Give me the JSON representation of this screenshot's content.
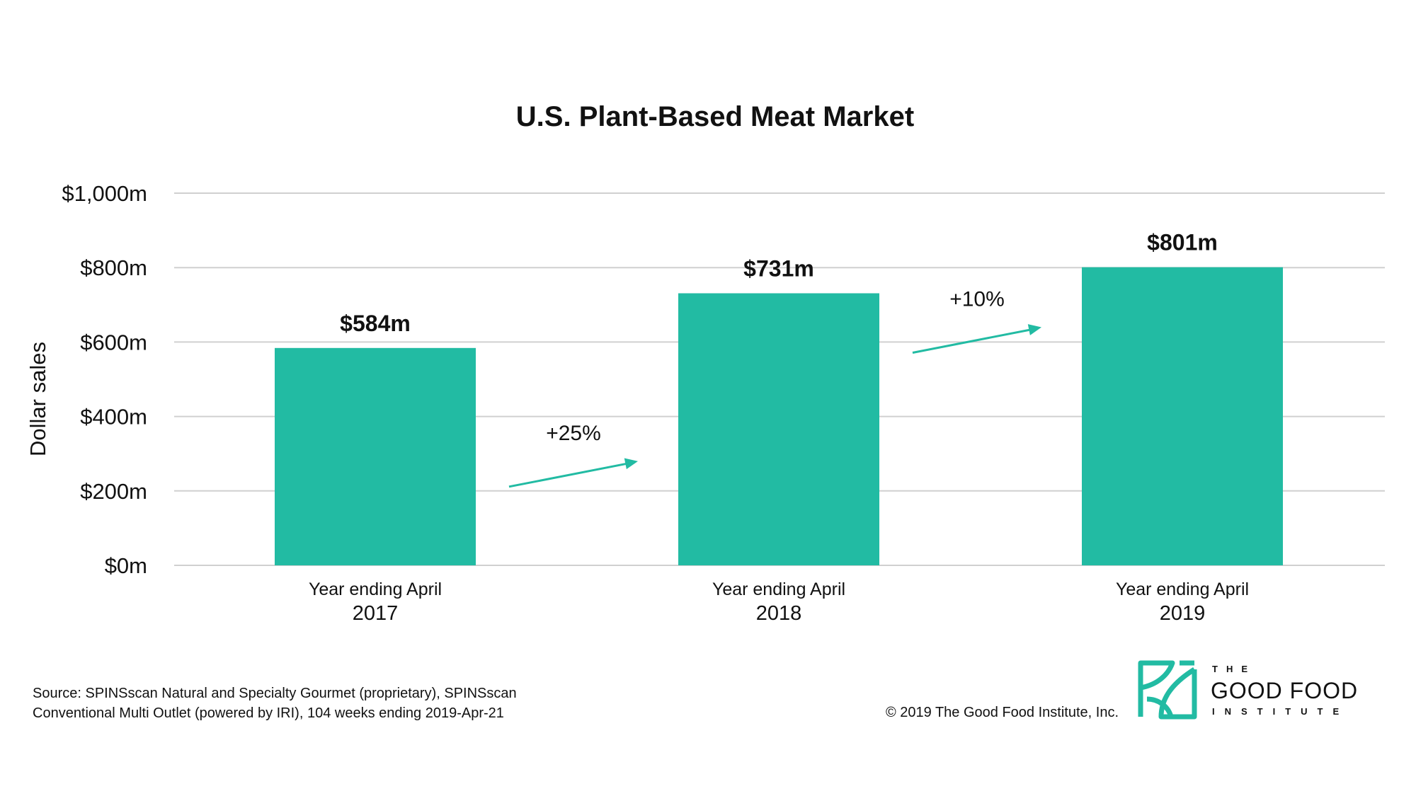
{
  "chart_data": {
    "type": "bar",
    "title": "U.S. Plant-Based Meat Market",
    "ylabel": "Dollar sales",
    "xlabel": "",
    "ylim": [
      0,
      1000
    ],
    "yticks": [
      0,
      200,
      400,
      600,
      800,
      1000
    ],
    "ytick_labels": [
      "$0m",
      "$200m",
      "$400m",
      "$600m",
      "$800m",
      "$1,000m"
    ],
    "categories": [
      {
        "line1": "Year ending April",
        "line2": "2017"
      },
      {
        "line1": "Year ending April",
        "line2": "2018"
      },
      {
        "line1": "Year ending April",
        "line2": "2019"
      }
    ],
    "values": [
      584,
      731,
      801
    ],
    "value_labels": [
      "$584m",
      "$731m",
      "$801m"
    ],
    "annotations": [
      {
        "text": "+25%",
        "from_category": 0,
        "to_category": 1
      },
      {
        "text": "+10%",
        "from_category": 1,
        "to_category": 2
      }
    ],
    "grid": true,
    "legend": "none",
    "bar_color": "#22bba3",
    "arrow_color": "#22bba3",
    "grid_color": "#d0d0d0"
  },
  "footer": {
    "source_line1": "Source: SPINSscan Natural and Specialty Gourmet (proprietary), SPINSscan",
    "source_line2": "Conventional Multi Outlet (powered by IRI), 104 weeks ending 2019-Apr-21",
    "copyright": "© 2019 The Good Food Institute, Inc."
  },
  "logo": {
    "top": "THE",
    "main": "GOOD FOOD",
    "bottom": "INSTITUTE",
    "color": "#22bba3"
  }
}
